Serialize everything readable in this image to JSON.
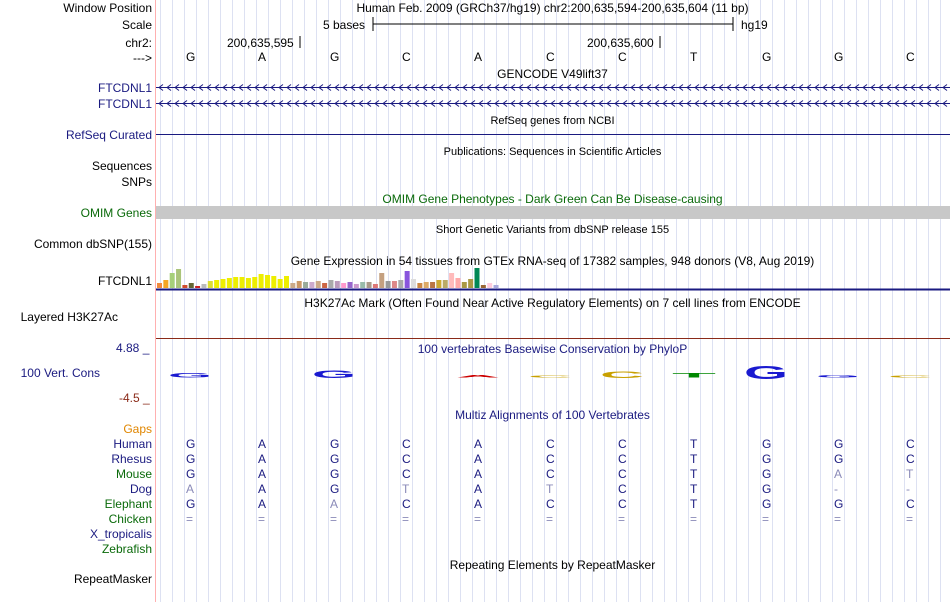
{
  "header": {
    "window_position_label": "Window Position",
    "scale_label": "Scale",
    "chrom_label": "chr2:",
    "arrow_label": "--->",
    "window_position_text": "Human Feb. 2009 (GRCh37/hg19)   chr2:200,635,594-200,635,604 (11 bp)",
    "scale_text": "5 bases",
    "assembly": "hg19",
    "coord_1": "200,635,595",
    "coord_2": "200,635,600"
  },
  "bases": [
    "G",
    "A",
    "G",
    "C",
    "A",
    "C",
    "C",
    "T",
    "G",
    "G",
    "C"
  ],
  "tracks": {
    "gencode": {
      "title": "GENCODE V49lift37",
      "rows": [
        "FTCDNL1",
        "FTCDNL1"
      ]
    },
    "refseq": {
      "title": "RefSeq genes from NCBI",
      "label": "RefSeq Curated"
    },
    "publications": {
      "title": "Publications: Sequences in Scientific Articles",
      "label_1": "Sequences",
      "label_2": "SNPs"
    },
    "omim": {
      "title": "OMIM Gene Phenotypes - Dark Green Can Be Disease-causing",
      "label": "OMIM Genes"
    },
    "dbsnp": {
      "title": "Short Genetic Variants from dbSNP release 155",
      "label": "Common dbSNP(155)"
    },
    "gtex": {
      "title": "Gene Expression in 54 tissues from GTEx RNA-seq of 17382 samples, 948 donors (V8, Aug 2019)",
      "label": "FTCDNL1",
      "bars": [
        {
          "h": 5,
          "c": "#f28a3c"
        },
        {
          "h": 8,
          "c": "#f5a623"
        },
        {
          "h": 15,
          "c": "#a6cf7a"
        },
        {
          "h": 19,
          "c": "#aac47a"
        },
        {
          "h": 3,
          "c": "#d14d2c"
        },
        {
          "h": 5,
          "c": "#666633"
        },
        {
          "h": 2,
          "c": "#cc2222"
        },
        {
          "h": 4,
          "c": "#bbbbbb"
        },
        {
          "h": 7,
          "c": "#dddd33"
        },
        {
          "h": 8,
          "c": "#eeee00"
        },
        {
          "h": 9,
          "c": "#eeee00"
        },
        {
          "h": 10,
          "c": "#eeee00"
        },
        {
          "h": 11,
          "c": "#eeee00"
        },
        {
          "h": 11,
          "c": "#eeee00"
        },
        {
          "h": 10,
          "c": "#eeee00"
        },
        {
          "h": 11,
          "c": "#eeee00"
        },
        {
          "h": 14,
          "c": "#eeee00"
        },
        {
          "h": 13,
          "c": "#eeee00"
        },
        {
          "h": 12,
          "c": "#eeee00"
        },
        {
          "h": 9,
          "c": "#eeee00"
        },
        {
          "h": 12,
          "c": "#eeee00"
        },
        {
          "h": 5,
          "c": "#ccaa88"
        },
        {
          "h": 7,
          "c": "#cc9966"
        },
        {
          "h": 6,
          "c": "#99aa99"
        },
        {
          "h": 6,
          "c": "#ccaacc"
        },
        {
          "h": 7,
          "c": "#ccaa88"
        },
        {
          "h": 5,
          "c": "#cc6644"
        },
        {
          "h": 8,
          "c": "#aaaaaa"
        },
        {
          "h": 7,
          "c": "#bb99bb"
        },
        {
          "h": 5,
          "c": "#ff99cc"
        },
        {
          "h": 6,
          "c": "#9966cc"
        },
        {
          "h": 4,
          "c": "#cc99cc"
        },
        {
          "h": 6,
          "c": "#99bbaa"
        },
        {
          "h": 6,
          "c": "#aa9988"
        },
        {
          "h": 4,
          "c": "#dd7777"
        },
        {
          "h": 15,
          "c": "#c4a080"
        },
        {
          "h": 7,
          "c": "#999999"
        },
        {
          "h": 7,
          "c": "#dd8888"
        },
        {
          "h": 8,
          "c": "#aaaaaa"
        },
        {
          "h": 17,
          "c": "#8855dd"
        },
        {
          "h": 9,
          "c": "#dddddd"
        },
        {
          "h": 5,
          "c": "#cc8844"
        },
        {
          "h": 6,
          "c": "#ddaa66"
        },
        {
          "h": 6,
          "c": "#bb7744"
        },
        {
          "h": 8,
          "c": "#ccaa33"
        },
        {
          "h": 8,
          "c": "#bbaa66"
        },
        {
          "h": 15,
          "c": "#ffbbbb"
        },
        {
          "h": 10,
          "c": "#ffaaaa"
        },
        {
          "h": 6,
          "c": "#aa9944"
        },
        {
          "h": 9,
          "c": "#aa9944"
        },
        {
          "h": 20,
          "c": "#008855"
        },
        {
          "h": 3,
          "c": "#996633"
        },
        {
          "h": 5,
          "c": "#ffccdd"
        },
        {
          "h": 3,
          "c": "#aaaadd"
        }
      ]
    },
    "h3k27ac": {
      "title": "H3K27Ac Mark (Often Found Near Active Regulatory Elements) on 7 cell lines from ENCODE",
      "label": "Layered H3K27Ac"
    },
    "cons": {
      "title": "100 vertebrates Basewise Conservation by PhyloP",
      "label": "100 Vert. Cons",
      "y_max": "4.88 _",
      "y_min": "-4.5 _",
      "scores": [
        0.9,
        0,
        1.7,
        0,
        0.6,
        0.2,
        1.4,
        1.0,
        2.8,
        0.6,
        0.2
      ]
    },
    "multiz": {
      "title": "Multiz Alignments of 100 Vertebrates",
      "gaps_label": "Gaps",
      "rows": [
        {
          "species": "Human",
          "color": "#1a1a80",
          "bases": [
            "G",
            "A",
            "G",
            "C",
            "A",
            "C",
            "C",
            "T",
            "G",
            "G",
            "C"
          ],
          "faint": []
        },
        {
          "species": "Rhesus",
          "color": "#1a1a80",
          "bases": [
            "G",
            "A",
            "G",
            "C",
            "A",
            "C",
            "C",
            "T",
            "G",
            "G",
            "C"
          ],
          "faint": []
        },
        {
          "species": "Mouse",
          "color": "#0a6a0a",
          "bases": [
            "G",
            "A",
            "G",
            "C",
            "A",
            "C",
            "C",
            "T",
            "G",
            "A",
            "T"
          ],
          "faint": [
            9,
            10
          ]
        },
        {
          "species": "Dog",
          "color": "#1a1a80",
          "bases": [
            "A",
            "A",
            "G",
            "T",
            "A",
            "T",
            "C",
            "T",
            "G",
            "-",
            "-"
          ],
          "faint": [
            0,
            3,
            5,
            9,
            10
          ]
        },
        {
          "species": "Elephant",
          "color": "#0a6a0a",
          "bases": [
            "G",
            "A",
            "A",
            "C",
            "A",
            "C",
            "C",
            "T",
            "G",
            "G",
            "C"
          ],
          "faint": [
            2
          ]
        },
        {
          "species": "Chicken",
          "color": "#0a6a0a",
          "bases": [
            "=",
            "=",
            "=",
            "=",
            "=",
            "=",
            "=",
            "=",
            "=",
            "=",
            "="
          ],
          "faint": [
            0,
            1,
            2,
            3,
            4,
            5,
            6,
            7,
            8,
            9,
            10
          ]
        },
        {
          "species": "X_tropicalis",
          "color": "#1a1a80",
          "bases": [],
          "faint": []
        },
        {
          "species": "Zebrafish",
          "color": "#0a6a0a",
          "bases": [],
          "faint": []
        }
      ]
    },
    "repeatmasker": {
      "title": "Repeating Elements by RepeatMasker",
      "label": "RepeatMasker"
    }
  },
  "colors": {
    "label_navy": "#1a1a80",
    "omim_bar": "#c8c8c8",
    "grid_line": "#cfd5ee",
    "left_border": "#ffb0b0"
  }
}
